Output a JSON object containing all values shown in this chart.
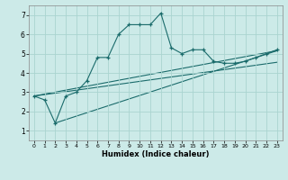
{
  "title": "",
  "xlabel": "Humidex (Indice chaleur)",
  "bg_color": "#cceae8",
  "grid_color": "#aad4d0",
  "line_color": "#1a6b6b",
  "xlim": [
    -0.5,
    23.5
  ],
  "ylim": [
    0.5,
    7.5
  ],
  "xticks": [
    0,
    1,
    2,
    3,
    4,
    5,
    6,
    7,
    8,
    9,
    10,
    11,
    12,
    13,
    14,
    15,
    16,
    17,
    18,
    19,
    20,
    21,
    22,
    23
  ],
  "yticks": [
    1,
    2,
    3,
    4,
    5,
    6,
    7
  ],
  "series1_x": [
    0,
    1,
    2,
    3,
    4,
    5,
    6,
    7,
    8,
    9,
    10,
    11,
    12,
    13,
    14,
    15,
    16,
    17,
    18,
    19,
    20,
    21,
    22,
    23
  ],
  "series1_y": [
    2.8,
    2.6,
    1.4,
    2.8,
    3.0,
    3.6,
    4.8,
    4.8,
    6.0,
    6.5,
    6.5,
    6.5,
    7.1,
    5.3,
    5.0,
    5.2,
    5.2,
    4.6,
    4.5,
    4.5,
    4.6,
    4.8,
    5.0,
    5.2
  ],
  "line1_x": [
    0,
    23
  ],
  "line1_y": [
    2.8,
    4.55
  ],
  "line2_x": [
    0,
    23
  ],
  "line2_y": [
    2.8,
    5.15
  ],
  "line3_x": [
    2,
    23
  ],
  "line3_y": [
    1.4,
    5.15
  ]
}
